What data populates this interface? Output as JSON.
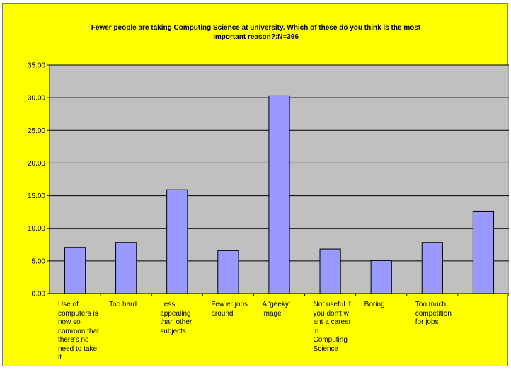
{
  "chart_data": {
    "type": "bar",
    "title": "Fewer people are taking Computing Science at university. Which of these do you think is the most important reason?:N=396",
    "title_lines": [
      "Fewer people are taking Computing Science at university. Which of these do you think is the most",
      "important reason?:N=396"
    ],
    "categories": [
      "Use of computers is now so common that there's no need to take it",
      "Too hard",
      "Less appealing than other subjects",
      "Few er jobs around",
      "A 'geeky' image",
      "Not useful if you don't w ant a career in Computing Science",
      "Boring",
      "Too much competition for jobs",
      ""
    ],
    "values": [
      7.07,
      7.83,
      15.91,
      6.57,
      30.3,
      6.82,
      5.05,
      7.83,
      12.63
    ],
    "ylim": [
      0,
      35
    ],
    "yticks": [
      "0.00",
      "5.00",
      "10.00",
      "15.00",
      "20.00",
      "25.00",
      "30.00",
      "35.00"
    ],
    "xlabel": "",
    "ylabel": "",
    "grid": true,
    "legend": "none",
    "colors": {
      "background": "#ffff00",
      "plot_area": "#c0c0c0",
      "bar": "#9999ff",
      "gridline": "#000000"
    }
  }
}
